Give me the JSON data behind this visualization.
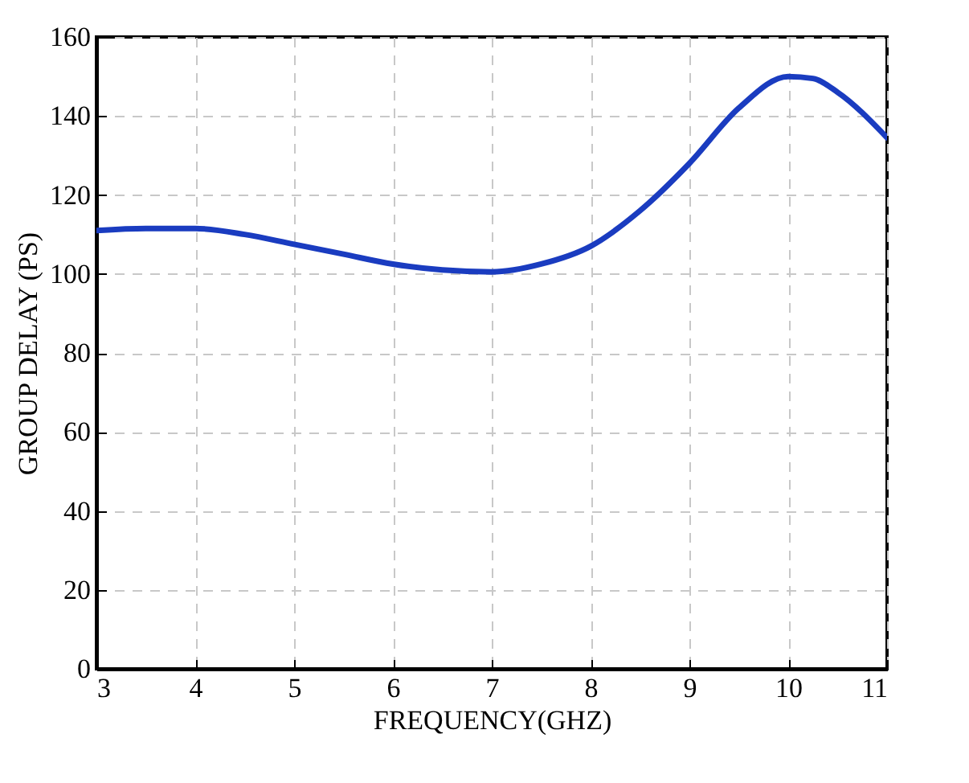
{
  "chart_data": {
    "type": "line",
    "xlabel": "FREQUENCY(GHZ)",
    "ylabel": "GROUP DELAY (PS)",
    "x": [
      3,
      3.5,
      4,
      4.5,
      5,
      5.5,
      6,
      6.5,
      7,
      7.5,
      8,
      8.5,
      9,
      9.5,
      10,
      10.25,
      10.5,
      11
    ],
    "series": [
      {
        "color": "#1a3cc0",
        "values": [
          111,
          111.5,
          111.5,
          110,
          107.5,
          105,
          102.5,
          101,
          100.5,
          102.5,
          107,
          116,
          128,
          142,
          150,
          149.5,
          146,
          134.5
        ]
      }
    ],
    "xlim": [
      3,
      11
    ],
    "xticks": [
      3,
      4,
      5,
      6,
      7,
      8,
      9,
      10,
      11
    ],
    "ylim": [
      0,
      160
    ],
    "yticks": [
      0,
      20,
      40,
      60,
      80,
      100,
      120,
      140,
      160
    ],
    "grid": true,
    "marker": "none",
    "line_style": "solid"
  }
}
